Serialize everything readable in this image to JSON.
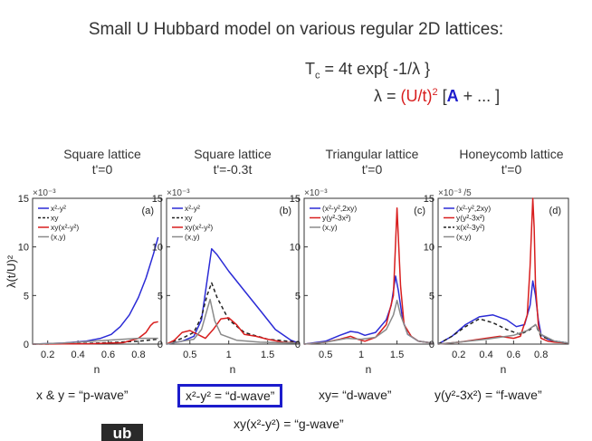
{
  "slide": {
    "title": "Small U Hubbard model on various regular 2D lattices:",
    "formula_tc_lhs": "T",
    "formula_tc_sub": "c",
    "formula_tc_rhs": " = 4t exp{ -1/λ }",
    "formula_lambda_prefix": "λ = ",
    "formula_lambda_ut": "(U/t)",
    "formula_lambda_sup": "2",
    "formula_lambda_bracket_open": " [",
    "formula_lambda_A": "A",
    "formula_lambda_rest": " + ... ]",
    "ylabel": "λ(t/U)²",
    "badge": "ub"
  },
  "captions": {
    "p_wave": "x & y = “p-wave”",
    "d_wave_box": "x²-y² = “d-wave”",
    "d_wave_xy": "xy= “d-wave”",
    "f_wave": "y(y²-3x²) = “f-wave”",
    "g_wave": "xy(x²-y²) = “g-wave”"
  },
  "colors": {
    "blue": "#2b2bd6",
    "red": "#d81e1e",
    "black": "#222222",
    "gray": "#8a8a8a",
    "box": "#1c1ccc"
  },
  "chart_data": [
    {
      "type": "line",
      "title": "Square lattice",
      "subtitle": "t'=0",
      "panel_label": "(a)",
      "exponent": "×10⁻³",
      "xlabel": "n",
      "xlim": [
        0.1,
        0.95
      ],
      "ylim": [
        0,
        15
      ],
      "xticks": [
        0.2,
        0.4,
        0.6,
        0.8
      ],
      "xtick_labels": [
        "0.2",
        "0.4",
        "0.6",
        "0.8"
      ],
      "yticks": [
        0,
        5,
        10,
        15
      ],
      "ytick_labels": [
        "0",
        "5",
        "10",
        "15"
      ],
      "legend_pos": "top-left",
      "series": [
        {
          "name": "x²-y²",
          "color": "#2b2bd6",
          "dash": "",
          "x": [
            0.1,
            0.3,
            0.45,
            0.55,
            0.62,
            0.68,
            0.74,
            0.8,
            0.85,
            0.9,
            0.93
          ],
          "y": [
            0,
            0.1,
            0.3,
            0.6,
            1.0,
            1.8,
            3.0,
            4.8,
            6.8,
            9.3,
            11
          ]
        },
        {
          "name": "xy",
          "color": "#222222",
          "dash": "4,3",
          "x": [
            0.1,
            0.4,
            0.6,
            0.8,
            0.93
          ],
          "y": [
            0,
            0.05,
            0.15,
            0.3,
            0.5
          ]
        },
        {
          "name": "xy(x²-y²)",
          "color": "#d81e1e",
          "dash": "",
          "x": [
            0.1,
            0.5,
            0.7,
            0.8,
            0.85,
            0.88,
            0.9,
            0.93
          ],
          "y": [
            0,
            0.05,
            0.15,
            0.6,
            1.2,
            1.9,
            2.2,
            2.3
          ]
        },
        {
          "name": "(x,y)",
          "color": "#8a8a8a",
          "dash": "",
          "x": [
            0.1,
            0.3,
            0.5,
            0.7,
            0.8,
            0.9,
            0.93
          ],
          "y": [
            0,
            0.1,
            0.3,
            0.5,
            0.6,
            0.6,
            0.6
          ]
        }
      ]
    },
    {
      "type": "line",
      "title": "Square lattice",
      "subtitle": "t'=-0.3t",
      "panel_label": "(b)",
      "exponent": "×10⁻³",
      "xlabel": "n",
      "xlim": [
        0.2,
        1.9
      ],
      "ylim": [
        0,
        15
      ],
      "xticks": [
        0.5,
        1,
        1.5
      ],
      "xtick_labels": [
        "0.5",
        "1",
        "1.5"
      ],
      "yticks": [
        0,
        5,
        10,
        15
      ],
      "ytick_labels": [
        "0",
        "5",
        "10",
        "15"
      ],
      "legend_pos": "top-left",
      "series": [
        {
          "name": "x²-y²",
          "color": "#2b2bd6",
          "dash": "",
          "x": [
            0.2,
            0.4,
            0.55,
            0.65,
            0.72,
            0.78,
            0.85,
            1.0,
            1.2,
            1.4,
            1.6,
            1.8,
            1.9
          ],
          "y": [
            0,
            0.3,
            0.8,
            2.5,
            6.5,
            9.8,
            9.2,
            7.5,
            5.5,
            3.5,
            1.5,
            0.4,
            0.1
          ]
        },
        {
          "name": "xy",
          "color": "#222222",
          "dash": "4,3",
          "x": [
            0.2,
            0.4,
            0.55,
            0.65,
            0.72,
            0.78,
            0.85,
            1.0,
            1.2,
            1.5,
            1.9
          ],
          "y": [
            0,
            0.6,
            1.2,
            2.8,
            5.0,
            6.3,
            4.8,
            2.5,
            1.2,
            0.5,
            0.2
          ]
        },
        {
          "name": "xy(x²-y²)",
          "color": "#d81e1e",
          "dash": "",
          "x": [
            0.2,
            0.3,
            0.4,
            0.5,
            0.6,
            0.7,
            0.8,
            0.9,
            1.0,
            1.1,
            1.2,
            1.35,
            1.5,
            1.7,
            1.9
          ],
          "y": [
            0,
            0.4,
            1.2,
            1.4,
            1.0,
            0.6,
            1.5,
            2.6,
            2.7,
            2.0,
            1.0,
            0.8,
            0.5,
            0.2,
            0.1
          ]
        },
        {
          "name": "(x,y)",
          "color": "#8a8a8a",
          "dash": "",
          "x": [
            0.2,
            0.4,
            0.55,
            0.65,
            0.72,
            0.76,
            0.82,
            0.9,
            1.1,
            1.4,
            1.9
          ],
          "y": [
            0,
            0.3,
            0.5,
            1.5,
            3.5,
            4.6,
            2.4,
            1.0,
            0.4,
            0.2,
            0.1
          ]
        }
      ]
    },
    {
      "type": "line",
      "title": "Triangular lattice",
      "subtitle": "t'=0",
      "panel_label": "(c)",
      "exponent": "×10⁻³",
      "xlabel": "n",
      "xlim": [
        0.2,
        2.0
      ],
      "ylim": [
        0,
        15
      ],
      "xticks": [
        0.5,
        1,
        1.5
      ],
      "xtick_labels": [
        "0.5",
        "1",
        "1.5"
      ],
      "yticks": [
        0,
        5,
        10,
        15
      ],
      "ytick_labels": [
        "0",
        "5",
        "10",
        "15"
      ],
      "legend_pos": "top-left",
      "series": [
        {
          "name": "(x²-y²,2xy)",
          "color": "#2b2bd6",
          "dash": "",
          "x": [
            0.2,
            0.5,
            0.7,
            0.85,
            0.95,
            1.05,
            1.2,
            1.35,
            1.42,
            1.48,
            1.52,
            1.58,
            1.65,
            1.8,
            2.0
          ],
          "y": [
            0,
            0.3,
            0.9,
            1.3,
            1.2,
            0.9,
            1.2,
            2.5,
            4.0,
            7.0,
            5.5,
            2.5,
            1.0,
            0.3,
            0.1
          ]
        },
        {
          "name": "y(y²-3x²)",
          "color": "#d81e1e",
          "dash": "",
          "x": [
            0.2,
            0.5,
            0.7,
            0.85,
            0.95,
            1.05,
            1.2,
            1.35,
            1.45,
            1.5,
            1.55,
            1.6,
            1.7,
            1.8,
            2.0
          ],
          "y": [
            0,
            0.2,
            0.5,
            0.8,
            0.5,
            0.3,
            0.7,
            2.0,
            5.0,
            14.0,
            6.0,
            2.0,
            0.8,
            0.3,
            0.1
          ]
        },
        {
          "name": "(x,y)",
          "color": "#8a8a8a",
          "dash": "",
          "x": [
            0.2,
            0.5,
            0.8,
            1.0,
            1.2,
            1.35,
            1.45,
            1.5,
            1.55,
            1.65,
            1.8,
            2.0
          ],
          "y": [
            0,
            0.2,
            0.6,
            0.5,
            0.7,
            1.5,
            3.0,
            4.5,
            3.0,
            1.0,
            0.3,
            0.1
          ]
        }
      ]
    },
    {
      "type": "line",
      "title": "Honeycomb lattice",
      "subtitle": "t'=0",
      "panel_label": "(d)",
      "exponent": "×10⁻³ /5",
      "xlabel": "n",
      "xlim": [
        0.05,
        1.0
      ],
      "ylim": [
        0,
        15
      ],
      "xticks": [
        0.2,
        0.4,
        0.6,
        0.8
      ],
      "xtick_labels": [
        "0.2",
        "0.4",
        "0.6",
        "0.8"
      ],
      "yticks": [
        0,
        5,
        10,
        15
      ],
      "ytick_labels": [
        "0",
        "5",
        "10",
        "15"
      ],
      "legend_pos": "top-left",
      "series": [
        {
          "name": "(x²-y²,2xy)",
          "color": "#2b2bd6",
          "dash": "",
          "x": [
            0.05,
            0.15,
            0.25,
            0.35,
            0.45,
            0.55,
            0.62,
            0.68,
            0.72,
            0.74,
            0.76,
            0.78,
            0.8,
            0.85,
            0.9,
            1.0
          ],
          "y": [
            0,
            0.8,
            2.0,
            2.8,
            3.0,
            2.5,
            1.8,
            2.0,
            4.0,
            6.5,
            5.0,
            2.5,
            1.0,
            0.5,
            0.3,
            0.1
          ]
        },
        {
          "name": "y(y²-3x²)",
          "color": "#d81e1e",
          "dash": "",
          "x": [
            0.05,
            0.2,
            0.35,
            0.5,
            0.6,
            0.65,
            0.7,
            0.72,
            0.74,
            0.75,
            0.76,
            0.78,
            0.8,
            0.85,
            0.9,
            1.0
          ],
          "y": [
            0,
            0.2,
            0.5,
            0.8,
            0.6,
            0.8,
            3.0,
            8.0,
            15.0,
            12.0,
            6.0,
            2.0,
            0.6,
            0.3,
            0.2,
            0.1
          ]
        },
        {
          "name": "x(x²-3y²)",
          "color": "#222222",
          "dash": "4,3",
          "x": [
            0.05,
            0.15,
            0.25,
            0.35,
            0.45,
            0.55,
            0.65,
            0.72,
            0.76,
            0.8,
            0.9,
            1.0
          ],
          "y": [
            0,
            0.8,
            1.8,
            2.6,
            2.2,
            1.5,
            1.0,
            1.5,
            2.0,
            0.8,
            0.3,
            0.1
          ]
        },
        {
          "name": "(x,y)",
          "color": "#8a8a8a",
          "dash": "",
          "x": [
            0.05,
            0.2,
            0.4,
            0.6,
            0.7,
            0.76,
            0.8,
            0.9,
            1.0
          ],
          "y": [
            0,
            0.2,
            0.5,
            0.9,
            1.4,
            2.0,
            1.0,
            0.3,
            0.1
          ]
        }
      ]
    }
  ]
}
